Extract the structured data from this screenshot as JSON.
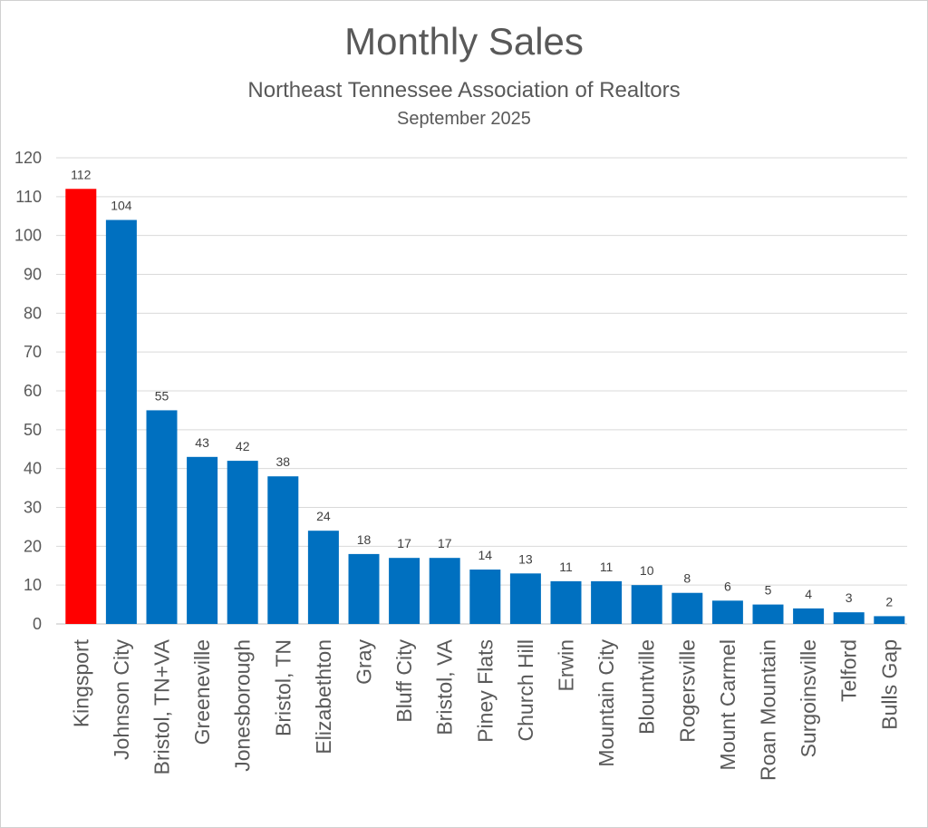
{
  "chart_data": {
    "type": "bar",
    "title": "Monthly Sales",
    "subtitle": "Northeast Tennessee Association of Realtors",
    "date": "September 2025",
    "categories": [
      "Kingsport",
      "Johnson City",
      "Bristol, TN+VA",
      "Greeneville",
      "Jonesborough",
      "Bristol, TN",
      "Elizabethton",
      "Gray",
      "Bluff City",
      "Bristol, VA",
      "Piney Flats",
      "Church Hill",
      "Erwin",
      "Mountain City",
      "Blountville",
      "Rogersville",
      "Mount Carmel",
      "Roan Mountain",
      "Surgoinsville",
      "Telford",
      "Bulls Gap"
    ],
    "values": [
      112,
      104,
      55,
      43,
      42,
      38,
      24,
      18,
      17,
      17,
      14,
      13,
      11,
      11,
      10,
      8,
      6,
      5,
      4,
      3,
      2
    ],
    "highlight_index": 0,
    "highlight_color": "#ff0000",
    "bar_color": "#0070c0",
    "ylim": [
      0,
      120
    ],
    "yticks": [
      0,
      10,
      20,
      30,
      40,
      50,
      60,
      70,
      80,
      90,
      100,
      110,
      120
    ],
    "grid": true,
    "legend": "none",
    "xlabel": "",
    "ylabel": ""
  }
}
